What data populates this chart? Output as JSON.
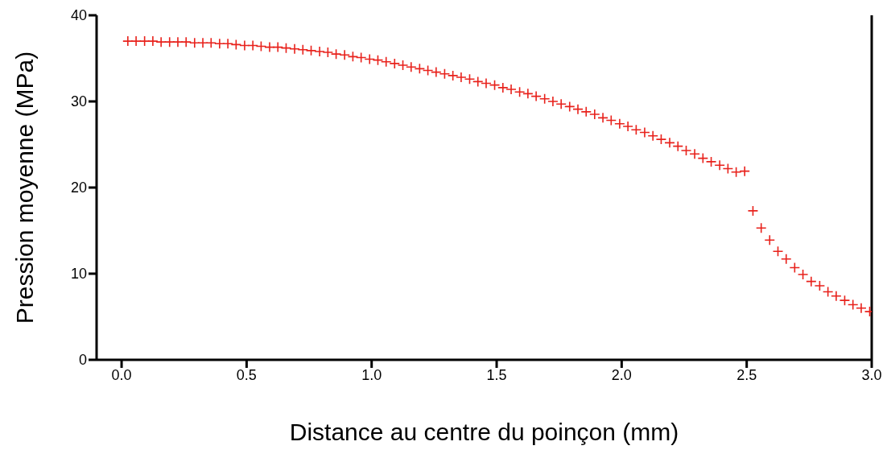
{
  "chart_data": {
    "type": "scatter",
    "xlabel": "Distance au centre du poinçon (mm)",
    "ylabel": "Pression moyenne (MPa)",
    "xlim": [
      -0.1,
      3.0
    ],
    "xticks": [
      {
        "value": 0,
        "label": "0.0"
      },
      {
        "value": 0.5,
        "label": "0.5"
      },
      {
        "value": 1,
        "label": "1.0"
      },
      {
        "value": 1.5,
        "label": "1.5"
      },
      {
        "value": 2,
        "label": "2.0"
      },
      {
        "value": 2.5,
        "label": "2.5"
      },
      {
        "value": 3,
        "label": "3.0"
      }
    ],
    "ylim": [
      0,
      40
    ],
    "yticks": [
      0,
      10,
      20,
      30,
      40
    ],
    "grid": false,
    "legend": false,
    "marker": "cross",
    "series": [
      {
        "color": "#e8221c",
        "x": [
          0.025,
          0.058,
          0.092,
          0.125,
          0.158,
          0.192,
          0.225,
          0.258,
          0.292,
          0.325,
          0.358,
          0.392,
          0.425,
          0.458,
          0.492,
          0.525,
          0.558,
          0.592,
          0.625,
          0.658,
          0.692,
          0.725,
          0.758,
          0.792,
          0.825,
          0.858,
          0.892,
          0.925,
          0.958,
          0.992,
          1.025,
          1.058,
          1.092,
          1.125,
          1.158,
          1.192,
          1.225,
          1.258,
          1.292,
          1.325,
          1.358,
          1.392,
          1.425,
          1.458,
          1.492,
          1.525,
          1.558,
          1.592,
          1.625,
          1.658,
          1.692,
          1.725,
          1.758,
          1.792,
          1.825,
          1.858,
          1.892,
          1.925,
          1.958,
          1.992,
          2.025,
          2.058,
          2.092,
          2.125,
          2.158,
          2.192,
          2.225,
          2.258,
          2.292,
          2.325,
          2.358,
          2.392,
          2.425,
          2.458,
          2.492,
          2.525,
          2.558,
          2.592,
          2.625,
          2.658,
          2.692,
          2.725,
          2.758,
          2.792,
          2.825,
          2.858,
          2.892,
          2.925,
          2.958,
          2.992
        ],
        "values": [
          37.0,
          37.0,
          37.0,
          37.0,
          36.9,
          36.9,
          36.9,
          36.9,
          36.8,
          36.8,
          36.8,
          36.7,
          36.7,
          36.6,
          36.5,
          36.5,
          36.4,
          36.3,
          36.3,
          36.2,
          36.1,
          36.0,
          35.9,
          35.8,
          35.7,
          35.5,
          35.4,
          35.2,
          35.1,
          34.9,
          34.8,
          34.6,
          34.4,
          34.2,
          34.0,
          33.8,
          33.6,
          33.4,
          33.2,
          33.0,
          32.8,
          32.6,
          32.3,
          32.1,
          31.9,
          31.6,
          31.4,
          31.1,
          30.9,
          30.6,
          30.3,
          30.0,
          29.7,
          29.4,
          29.1,
          28.8,
          28.5,
          28.1,
          27.8,
          27.4,
          27.1,
          26.7,
          26.4,
          26.0,
          25.6,
          25.2,
          24.8,
          24.3,
          23.9,
          23.4,
          23.0,
          22.6,
          22.2,
          21.8,
          21.9,
          17.3,
          15.3,
          13.9,
          12.6,
          11.7,
          10.7,
          9.9,
          9.1,
          8.6,
          7.9,
          7.4,
          6.9,
          6.4,
          6.0,
          5.6
        ]
      }
    ]
  }
}
